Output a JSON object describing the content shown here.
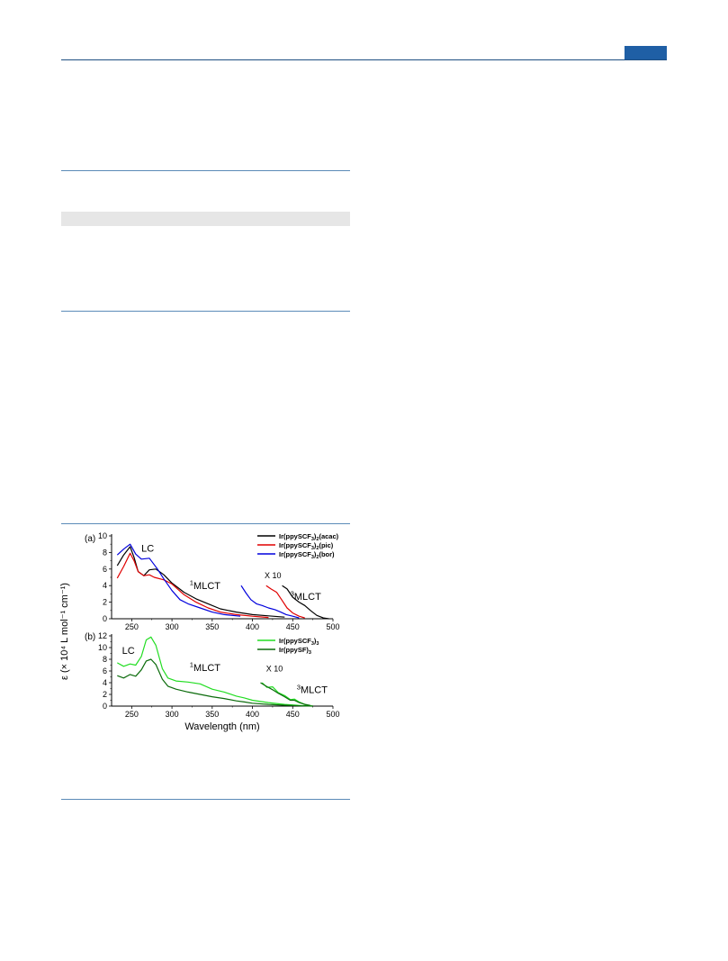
{
  "colors": {
    "header_bar": "#1f5fa5",
    "rule": "#5b8bb8",
    "band": "#e6e6e6",
    "acac": "#000000",
    "pic": "#e00000",
    "bor": "#0000dd",
    "scf3": "#22dd22",
    "sf": "#0b6b0b"
  },
  "shared_ylabel": "ε (× 10⁴ L mol⁻¹ cm⁻¹)",
  "chart_data": [
    {
      "type": "line",
      "panel_label": "(a)",
      "xlim": [
        225,
        500
      ],
      "ylim": [
        0,
        10
      ],
      "x_ticks": [
        250,
        300,
        350,
        400,
        450,
        500
      ],
      "y_ticks": [
        0,
        2,
        4,
        6,
        8,
        10
      ],
      "grid": false,
      "legend": "top-right",
      "annotations": [
        {
          "text": "LC",
          "x": 262,
          "y": 8.1
        },
        {
          "text": "MLCT",
          "sup": "1",
          "x": 322,
          "y": 3.6
        },
        {
          "text": "X 10",
          "x": 415,
          "y": 4.9
        },
        {
          "text": "MLCT",
          "sup": "3",
          "x": 447,
          "y": 2.3
        }
      ],
      "series": [
        {
          "name": "Ir(ppySCF3)2(acac)",
          "color_key": "acac",
          "x": [
            232,
            240,
            248,
            253,
            258,
            265,
            272,
            280,
            290,
            300,
            315,
            330,
            345,
            360,
            380,
            400,
            420,
            440
          ],
          "y": [
            6.4,
            7.7,
            8.7,
            7.4,
            5.7,
            5.2,
            5.9,
            6.0,
            5.3,
            4.3,
            3.2,
            2.4,
            1.8,
            1.2,
            0.8,
            0.5,
            0.35,
            0.2
          ]
        },
        {
          "name": "Ir(ppySCF3)2(pic)",
          "color_key": "pic",
          "x": [
            232,
            240,
            248,
            253,
            258,
            265,
            272,
            278,
            290,
            300,
            315,
            330,
            345,
            360,
            380,
            400,
            420
          ],
          "y": [
            4.9,
            6.3,
            7.9,
            7.0,
            5.7,
            5.2,
            5.3,
            5.0,
            4.7,
            4.2,
            2.9,
            2.0,
            1.3,
            0.8,
            0.5,
            0.3,
            0.15
          ]
        },
        {
          "name": "Ir(ppySCF3)2(bor)",
          "color_key": "bor",
          "x": [
            232,
            240,
            248,
            255,
            262,
            272,
            282,
            290,
            300,
            310,
            320,
            335,
            350,
            365,
            385
          ],
          "y": [
            7.7,
            8.4,
            9.0,
            7.8,
            7.2,
            7.3,
            6.0,
            4.8,
            3.4,
            2.3,
            1.8,
            1.3,
            0.8,
            0.5,
            0.3
          ]
        }
      ],
      "x10_series": [
        {
          "color_key": "acac",
          "x": [
            437,
            443,
            450,
            458,
            465,
            472,
            480,
            488,
            495
          ],
          "y": [
            4.0,
            3.6,
            2.6,
            2.0,
            1.6,
            1.0,
            0.4,
            0.1,
            0.0
          ]
        },
        {
          "color_key": "pic",
          "x": [
            417,
            423,
            430,
            437,
            443,
            450,
            458,
            465
          ],
          "y": [
            4.0,
            3.6,
            3.2,
            2.2,
            1.3,
            0.7,
            0.3,
            0.1
          ]
        },
        {
          "color_key": "bor",
          "x": [
            386,
            392,
            398,
            405,
            412,
            420,
            428,
            435,
            442,
            450,
            458
          ],
          "y": [
            4.0,
            3.1,
            2.3,
            1.8,
            1.6,
            1.3,
            1.1,
            0.8,
            0.5,
            0.3,
            0.1
          ]
        }
      ]
    },
    {
      "type": "line",
      "panel_label": "(b)",
      "xlim": [
        225,
        500
      ],
      "ylim": [
        0,
        12
      ],
      "x_ticks": [
        250,
        300,
        350,
        400,
        450,
        500
      ],
      "y_ticks": [
        0,
        2,
        4,
        6,
        8,
        10,
        12
      ],
      "grid": false,
      "legend": "top-right",
      "xlabel": "Wavelength (nm)",
      "annotations": [
        {
          "text": "LC",
          "x": 238,
          "y": 8.9
        },
        {
          "text": "MLCT",
          "sup": "1",
          "x": 322,
          "y": 6.0
        },
        {
          "text": "X 10",
          "x": 417,
          "y": 5.9
        },
        {
          "text": "MLCT",
          "sup": "3",
          "x": 455,
          "y": 2.2
        }
      ],
      "series": [
        {
          "name": "Ir(ppySCF3)3",
          "color_key": "scf3",
          "x": [
            232,
            240,
            248,
            255,
            262,
            268,
            274,
            280,
            288,
            295,
            305,
            320,
            335,
            350,
            365,
            380,
            390,
            400,
            420,
            440,
            460,
            475
          ],
          "y": [
            7.4,
            6.8,
            7.2,
            7.0,
            8.5,
            11.3,
            11.8,
            10.4,
            6.4,
            4.8,
            4.3,
            4.1,
            3.8,
            2.9,
            2.4,
            1.7,
            1.4,
            1.0,
            0.6,
            0.3,
            0.1,
            0.05
          ]
        },
        {
          "name": "Ir(ppySF)3",
          "color_key": "sf",
          "x": [
            232,
            240,
            248,
            255,
            262,
            268,
            274,
            280,
            288,
            295,
            305,
            320,
            335,
            350,
            365,
            380,
            390,
            400,
            420,
            440,
            460,
            475
          ],
          "y": [
            5.2,
            4.8,
            5.4,
            5.1,
            6.2,
            7.7,
            8.0,
            7.1,
            4.6,
            3.4,
            2.9,
            2.4,
            2.0,
            1.6,
            1.3,
            0.9,
            0.7,
            0.5,
            0.3,
            0.15,
            0.05,
            0.0
          ]
        }
      ],
      "x10_series": [
        {
          "color_key": "scf3",
          "x": [
            412,
            418,
            425,
            432,
            440,
            447,
            452,
            458,
            465,
            472
          ],
          "y": [
            4.0,
            3.2,
            3.3,
            2.3,
            1.8,
            1.1,
            1.2,
            0.7,
            0.3,
            0.1
          ]
        },
        {
          "color_key": "sf",
          "x": [
            410,
            417,
            425,
            432,
            440,
            447,
            452,
            458,
            465,
            472
          ],
          "y": [
            4.0,
            3.4,
            2.8,
            2.2,
            1.6,
            1.0,
            1.0,
            0.6,
            0.3,
            0.1
          ]
        }
      ]
    }
  ]
}
